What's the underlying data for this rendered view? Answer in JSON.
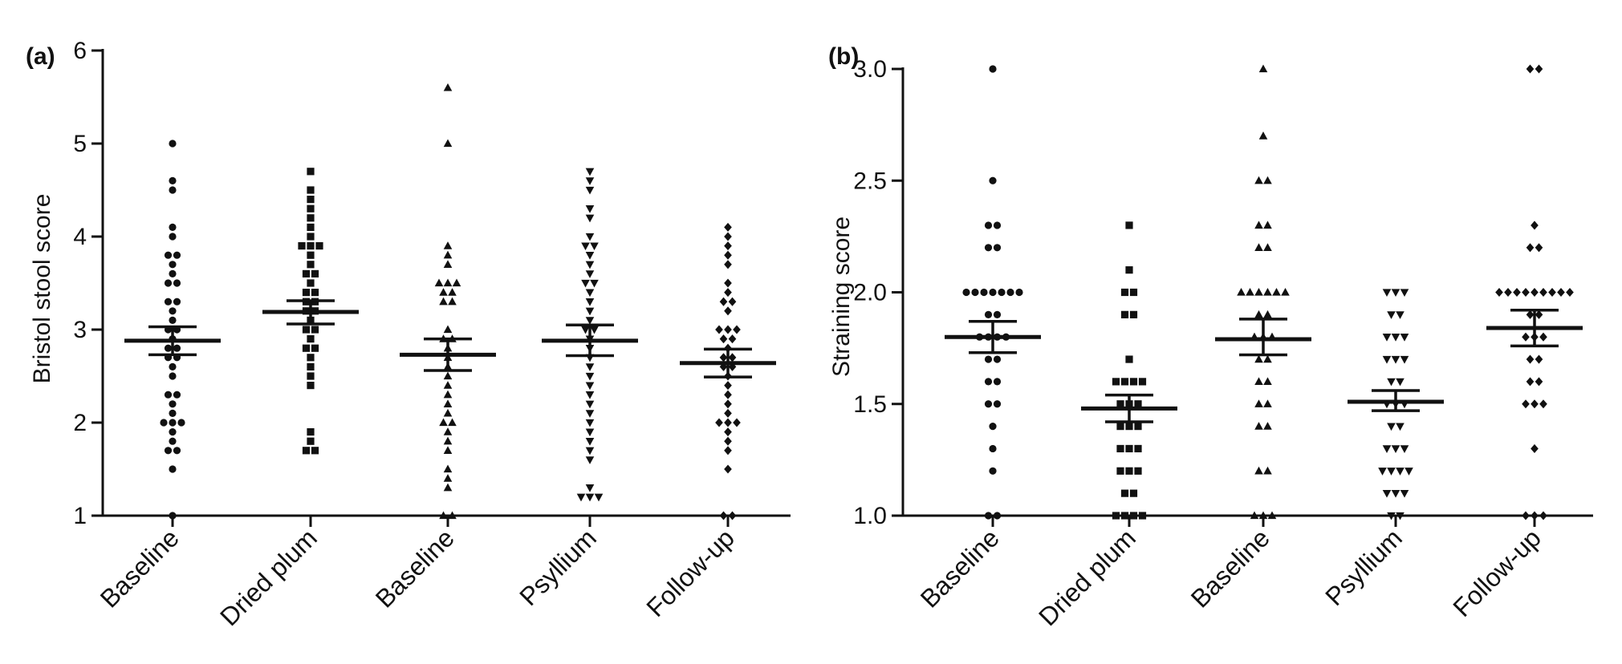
{
  "chart_data": [
    {
      "type": "scatter",
      "panel_label": "(a)",
      "title": "",
      "ylabel": "Bristol stool score",
      "xlabel": "",
      "ylim": [
        1,
        6
      ],
      "yticks": [
        1,
        2,
        3,
        4,
        5,
        6
      ],
      "grid": false,
      "categories": [
        "Baseline",
        "Dried plum",
        "Baseline",
        "Psyllium",
        "Follow-up"
      ],
      "markers": [
        "circle",
        "square",
        "triangle-up",
        "triangle-down",
        "diamond"
      ],
      "series": [
        {
          "values": [
            5.0,
            4.6,
            4.5,
            4.1,
            4.0,
            3.8,
            3.8,
            3.7,
            3.6,
            3.5,
            3.5,
            3.3,
            3.3,
            3.2,
            3.1,
            3.0,
            3.0,
            2.9,
            2.8,
            2.8,
            2.7,
            2.7,
            2.6,
            2.5,
            2.3,
            2.3,
            2.2,
            2.1,
            2.0,
            2.0,
            2.0,
            1.9,
            1.8,
            1.7,
            1.7,
            1.5,
            1.0
          ],
          "mean": 2.88,
          "sem_low": 2.73,
          "sem_high": 3.03
        },
        {
          "values": [
            4.7,
            4.5,
            4.4,
            4.3,
            4.2,
            4.1,
            4.0,
            3.9,
            3.9,
            3.9,
            3.8,
            3.7,
            3.6,
            3.6,
            3.5,
            3.4,
            3.4,
            3.3,
            3.3,
            3.2,
            3.2,
            3.1,
            3.0,
            3.0,
            2.9,
            2.8,
            2.8,
            2.7,
            2.6,
            2.5,
            2.4,
            1.9,
            1.8,
            1.7,
            1.7
          ],
          "mean": 3.19,
          "sem_low": 3.06,
          "sem_high": 3.31
        },
        {
          "values": [
            5.6,
            5.0,
            3.9,
            3.8,
            3.7,
            3.5,
            3.5,
            3.5,
            3.4,
            3.4,
            3.3,
            3.3,
            3.0,
            2.9,
            2.9,
            2.8,
            2.7,
            2.6,
            2.5,
            2.4,
            2.3,
            2.2,
            2.1,
            2.0,
            2.0,
            1.9,
            1.8,
            1.7,
            1.5,
            1.4,
            1.3,
            1.0,
            1.0
          ],
          "mean": 2.73,
          "sem_low": 2.56,
          "sem_high": 2.9
        },
        {
          "values": [
            4.7,
            4.6,
            4.5,
            4.3,
            4.2,
            4.0,
            3.9,
            3.9,
            3.8,
            3.7,
            3.6,
            3.5,
            3.5,
            3.4,
            3.3,
            3.2,
            3.1,
            3.0,
            3.0,
            2.9,
            2.8,
            2.7,
            2.6,
            2.5,
            2.4,
            2.3,
            2.2,
            2.1,
            2.0,
            1.9,
            1.8,
            1.7,
            1.6,
            1.3,
            1.2,
            1.2,
            1.2
          ],
          "mean": 2.88,
          "sem_low": 2.72,
          "sem_high": 3.05
        },
        {
          "values": [
            4.1,
            4.0,
            3.9,
            3.8,
            3.7,
            3.5,
            3.4,
            3.3,
            3.3,
            3.2,
            3.0,
            3.0,
            3.0,
            2.9,
            2.9,
            2.8,
            2.7,
            2.7,
            2.6,
            2.6,
            2.5,
            2.4,
            2.3,
            2.2,
            2.1,
            2.0,
            2.0,
            2.0,
            1.9,
            1.8,
            1.7,
            1.5,
            1.0,
            1.0
          ],
          "mean": 2.64,
          "sem_low": 2.49,
          "sem_high": 2.79
        }
      ]
    },
    {
      "type": "scatter",
      "panel_label": "(b)",
      "title": "",
      "ylabel": "Straining score",
      "xlabel": "",
      "ylim": [
        1.0,
        3.0
      ],
      "yticks": [
        "1.0",
        "1.5",
        "2.0",
        "2.5",
        "3.0"
      ],
      "grid": false,
      "categories": [
        "Baseline",
        "Dried plum",
        "Baseline",
        "Psyllium",
        "Follow-up"
      ],
      "markers": [
        "circle",
        "square",
        "triangle-up",
        "triangle-down",
        "diamond"
      ],
      "series": [
        {
          "values": [
            3.0,
            2.5,
            2.3,
            2.3,
            2.2,
            2.2,
            2.0,
            2.0,
            2.0,
            2.0,
            2.0,
            2.0,
            2.0,
            1.9,
            1.9,
            1.8,
            1.8,
            1.8,
            1.8,
            1.7,
            1.7,
            1.6,
            1.6,
            1.5,
            1.5,
            1.4,
            1.3,
            1.2,
            1.0,
            1.0
          ],
          "mean": 1.8,
          "sem_low": 1.73,
          "sem_high": 1.87
        },
        {
          "values": [
            2.3,
            2.1,
            2.0,
            2.0,
            1.9,
            1.9,
            1.7,
            1.6,
            1.6,
            1.6,
            1.6,
            1.5,
            1.5,
            1.5,
            1.4,
            1.4,
            1.4,
            1.3,
            1.3,
            1.3,
            1.2,
            1.2,
            1.2,
            1.1,
            1.1,
            1.0,
            1.0,
            1.0,
            1.0
          ],
          "mean": 1.48,
          "sem_low": 1.42,
          "sem_high": 1.54
        },
        {
          "values": [
            3.0,
            2.7,
            2.5,
            2.5,
            2.3,
            2.3,
            2.2,
            2.2,
            2.0,
            2.0,
            2.0,
            2.0,
            2.0,
            2.0,
            1.9,
            1.9,
            1.8,
            1.8,
            1.8,
            1.7,
            1.7,
            1.6,
            1.6,
            1.5,
            1.5,
            1.4,
            1.4,
            1.2,
            1.2,
            1.0,
            1.0,
            1.0
          ],
          "mean": 1.79,
          "sem_low": 1.72,
          "sem_high": 1.88
        },
        {
          "values": [
            2.0,
            2.0,
            2.0,
            1.9,
            1.9,
            1.8,
            1.8,
            1.8,
            1.7,
            1.7,
            1.7,
            1.6,
            1.6,
            1.5,
            1.5,
            1.5,
            1.4,
            1.4,
            1.3,
            1.3,
            1.3,
            1.2,
            1.2,
            1.2,
            1.2,
            1.1,
            1.1,
            1.1,
            1.0,
            1.0
          ],
          "mean": 1.51,
          "sem_low": 1.47,
          "sem_high": 1.56
        },
        {
          "values": [
            3.0,
            3.0,
            2.3,
            2.2,
            2.2,
            2.0,
            2.0,
            2.0,
            2.0,
            2.0,
            2.0,
            2.0,
            2.0,
            2.0,
            1.9,
            1.9,
            1.8,
            1.8,
            1.8,
            1.7,
            1.7,
            1.6,
            1.6,
            1.5,
            1.5,
            1.5,
            1.3,
            1.0,
            1.0,
            1.0
          ],
          "mean": 1.84,
          "sem_low": 1.76,
          "sem_high": 1.92
        }
      ]
    }
  ]
}
